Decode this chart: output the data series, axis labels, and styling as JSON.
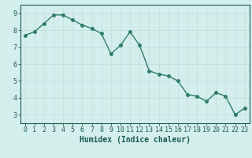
{
  "x": [
    0,
    1,
    2,
    3,
    4,
    5,
    6,
    7,
    8,
    9,
    10,
    11,
    12,
    13,
    14,
    15,
    16,
    17,
    18,
    19,
    20,
    21,
    22,
    23
  ],
  "y": [
    7.7,
    7.9,
    8.4,
    8.9,
    8.9,
    8.6,
    8.3,
    8.1,
    7.8,
    6.6,
    7.1,
    7.9,
    7.1,
    5.6,
    5.4,
    5.3,
    5.0,
    4.2,
    4.1,
    3.8,
    4.3,
    4.1,
    3.0,
    3.4
  ],
  "line_color": "#2d7d6e",
  "marker_color": "#2d7d6e",
  "bg_color": "#d4eeec",
  "grid_color": "#c0deda",
  "text_color": "#1a5c54",
  "xlabel": "Humidex (Indice chaleur)",
  "ylim": [
    2.5,
    9.5
  ],
  "xlim": [
    -0.5,
    23.5
  ],
  "yticks": [
    3,
    4,
    5,
    6,
    7,
    8,
    9
  ],
  "xticks": [
    0,
    1,
    2,
    3,
    4,
    5,
    6,
    7,
    8,
    9,
    10,
    11,
    12,
    13,
    14,
    15,
    16,
    17,
    18,
    19,
    20,
    21,
    22,
    23
  ],
  "xlabel_fontsize": 7,
  "tick_fontsize": 6,
  "linewidth": 1.0,
  "markersize": 2.5
}
